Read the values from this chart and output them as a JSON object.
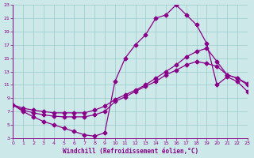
{
  "title": "",
  "xlabel": "Windchill (Refroidissement éolien,°C)",
  "ylabel": "",
  "bg_color": "#cce8e8",
  "line_color": "#880088",
  "grid_color": "#99cccc",
  "ylim": [
    3,
    23
  ],
  "xlim": [
    0,
    23
  ],
  "yticks": [
    3,
    5,
    7,
    9,
    11,
    13,
    15,
    17,
    19,
    21,
    23
  ],
  "xticks": [
    0,
    1,
    2,
    3,
    4,
    5,
    6,
    7,
    8,
    9,
    10,
    11,
    12,
    13,
    14,
    15,
    16,
    17,
    18,
    19,
    20,
    21,
    22,
    23
  ],
  "line1_x": [
    0,
    1,
    2,
    3,
    4,
    5,
    6,
    7,
    8,
    9,
    10,
    11,
    12,
    13,
    14,
    15,
    16,
    17,
    18,
    19,
    20,
    21,
    22,
    23
  ],
  "line1_y": [
    8.0,
    7.0,
    6.2,
    5.5,
    5.0,
    4.5,
    4.0,
    3.5,
    3.3,
    3.8,
    11.5,
    15.0,
    17.0,
    18.5,
    21.0,
    21.5,
    23.0,
    21.5,
    20.0,
    17.2,
    11.0,
    12.2,
    11.5,
    10.0
  ],
  "line2_x": [
    0,
    1,
    2,
    3,
    4,
    5,
    6,
    7,
    8,
    9,
    10,
    11,
    12,
    13,
    14,
    15,
    16,
    17,
    18,
    19,
    20,
    21,
    22,
    23
  ],
  "line2_y": [
    8.0,
    7.2,
    6.8,
    6.5,
    6.3,
    6.2,
    6.2,
    6.2,
    6.5,
    7.0,
    8.5,
    9.2,
    10.0,
    10.8,
    11.5,
    12.5,
    13.2,
    14.0,
    14.5,
    14.2,
    13.8,
    12.5,
    12.0,
    11.0
  ],
  "line3_x": [
    0,
    1,
    2,
    3,
    4,
    5,
    6,
    7,
    8,
    9,
    10,
    11,
    12,
    13,
    14,
    15,
    16,
    17,
    18,
    19,
    20,
    21,
    22,
    23
  ],
  "line3_y": [
    8.0,
    7.5,
    7.2,
    7.0,
    6.8,
    6.8,
    6.8,
    6.8,
    7.2,
    7.8,
    8.8,
    9.5,
    10.2,
    11.0,
    12.0,
    13.0,
    14.0,
    15.2,
    16.0,
    16.5,
    14.5,
    12.5,
    12.0,
    11.2
  ],
  "marker": "D",
  "marker_size": 2.5,
  "line_width": 0.9
}
